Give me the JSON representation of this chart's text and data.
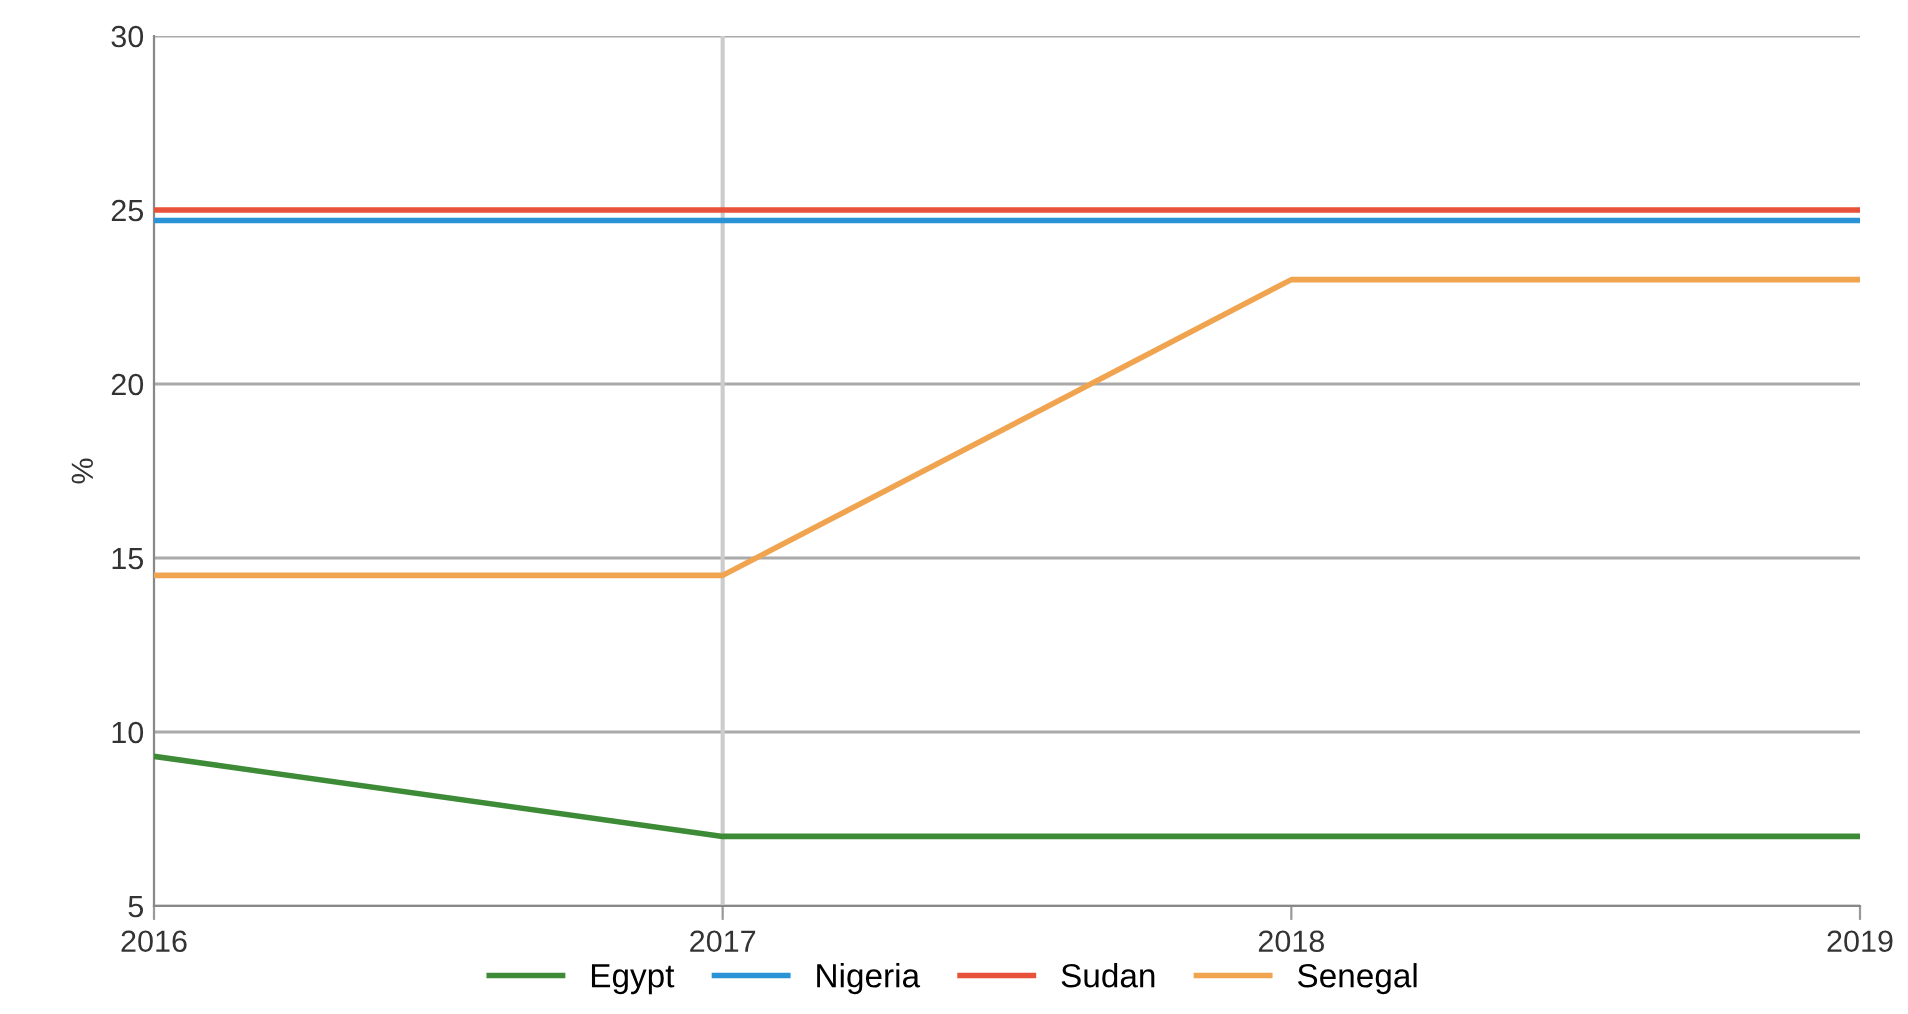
{
  "chart_data": {
    "type": "line",
    "ylabel": "%",
    "x": [
      2016,
      2017,
      2018,
      2019
    ],
    "xlim": [
      2016,
      2019
    ],
    "xticks": [
      2016,
      2017,
      2018,
      2019
    ],
    "ylim": [
      5,
      30
    ],
    "yticks": [
      5,
      10,
      15,
      20,
      25,
      30
    ],
    "grid": "y",
    "legend": "bottom",
    "marker": "none",
    "line_style": "solid",
    "ref_lines": [
      {
        "axis": "x",
        "value": 2017,
        "color": "#cccccc"
      }
    ],
    "series": [
      {
        "name": "Egypt",
        "color": "#3d8b37",
        "values": [
          9.3,
          7.0,
          7.0,
          7.0
        ]
      },
      {
        "name": "Nigeria",
        "color": "#2a93d5",
        "values": [
          24.7,
          24.7,
          24.7,
          24.7
        ]
      },
      {
        "name": "Sudan",
        "color": "#e8513a",
        "values": [
          25,
          25,
          25,
          25
        ]
      },
      {
        "name": "Senegal",
        "color": "#f0a450",
        "values": [
          14.5,
          14.5,
          23,
          23
        ]
      }
    ]
  }
}
